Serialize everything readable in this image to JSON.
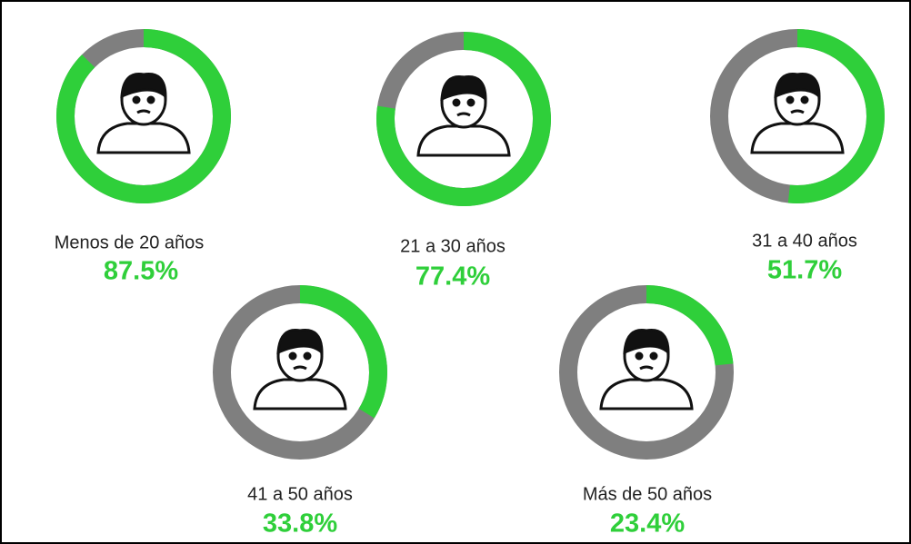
{
  "chart_data": {
    "type": "donut",
    "categories": [
      "Menos de 20 años",
      "21 a 30 años",
      "31 a 40 años",
      "41 a 50 años",
      "Más de 50 años"
    ],
    "values": [
      87.5,
      77.4,
      51.7,
      33.8,
      23.4
    ],
    "value_labels": [
      "87.5%",
      "77.4%",
      "51.7%",
      "33.8%",
      "23.4%"
    ],
    "color": "#2fcf3a",
    "track_color": "#7f7f7f"
  }
}
